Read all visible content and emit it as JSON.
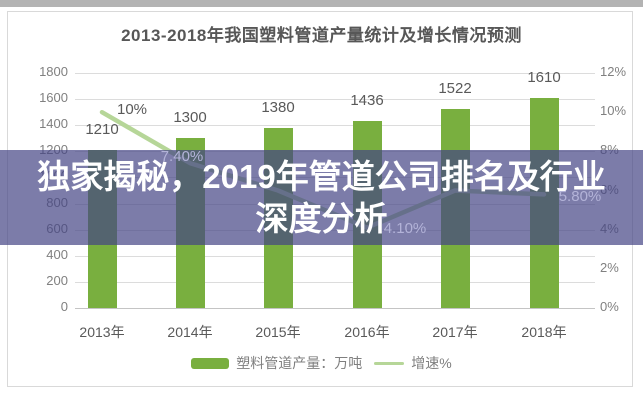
{
  "chart": {
    "title": "2013-2018年我国塑料管道产量统计及增长情况预测"
  },
  "banner": {
    "text": "独家揭秘，2019年管道公司排名及行业深度分析"
  },
  "colors": {
    "bar_green": "#79af3f",
    "line_green": "#b6d698",
    "banner_purple": "#44448a",
    "label_gray": "#595959",
    "axis_gray": "#808080"
  },
  "chart_data": {
    "type": "bar",
    "subtype": "bar+line-dual-axis",
    "title": "2013-2018年我国塑料管道产量统计及增长情况预测",
    "categories": [
      "2013年",
      "2014年",
      "2015年",
      "2016年",
      "2017年",
      "2018年"
    ],
    "series": [
      {
        "name": "塑料管道产量：万吨",
        "type": "bar",
        "axis": "left",
        "color": "#79af3f",
        "values": [
          1210,
          1300,
          1380,
          1436,
          1522,
          1610
        ],
        "labels": [
          "1210",
          "1300",
          "1380",
          "1436",
          "1522",
          "1610"
        ]
      },
      {
        "name": "增速%",
        "type": "line",
        "axis": "right",
        "color": "#b6d698",
        "values": [
          10,
          7.4,
          6.0,
          4.1,
          6.0,
          5.8
        ],
        "labels": [
          "10%",
          "7.40%",
          null,
          "4.10%",
          null,
          "5.80%"
        ]
      }
    ],
    "left_axis": {
      "min": 0,
      "max": 1800,
      "step": 200,
      "labels": [
        "1800",
        "1600",
        "1400",
        "1200",
        "1000",
        "800",
        "600",
        "400",
        "200",
        "0"
      ]
    },
    "right_axis": {
      "min": 0,
      "max": 12,
      "step": 2,
      "labels": [
        "12%",
        "10%",
        "8%",
        "6%",
        "4%",
        "2%",
        "0%"
      ]
    },
    "grid": true,
    "legend_position": "bottom"
  }
}
